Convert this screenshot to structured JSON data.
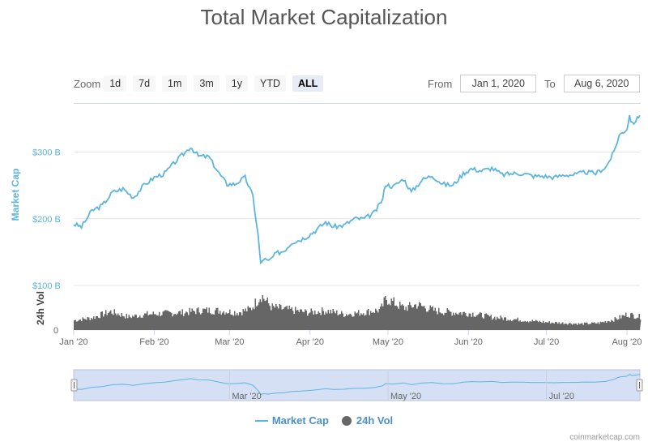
{
  "title": "Total Market Capitalization",
  "toolbar": {
    "zoom_label": "Zoom",
    "buttons": [
      "1d",
      "7d",
      "1m",
      "3m",
      "1y",
      "YTD",
      "ALL"
    ],
    "active": "ALL"
  },
  "range": {
    "from_label": "From",
    "from_value": "Jan 1, 2020",
    "to_label": "To",
    "to_value": "Aug 6, 2020"
  },
  "legend": {
    "cap": "Market Cap",
    "vol": "24h Vol"
  },
  "credit": "coinmarketcap.com",
  "colors": {
    "market_cap": "#5bb5e0",
    "volume": "#666666",
    "navigator_fill": "#d6e0f5"
  },
  "chart_data": {
    "type": "line",
    "title": "Total Market Capitalization",
    "x_tick_labels": [
      "Jan '20",
      "Feb '20",
      "Mar '20",
      "Apr '20",
      "May '20",
      "Jun '20",
      "Jul '20",
      "Aug '20"
    ],
    "navigator_tick_labels": [
      "Mar '20",
      "May '20",
      "Jul '20"
    ],
    "x_range": [
      "2020-01-01",
      "2020-08-06"
    ],
    "series": [
      {
        "name": "Market Cap",
        "axis_label": "Market Cap",
        "y_ticks": [
          "$100 B",
          "$200 B",
          "$300 B"
        ],
        "ylim": [
          100,
          370
        ],
        "unit": "billion USD",
        "points": [
          [
            "2020-01-01",
            192
          ],
          [
            "2020-01-04",
            188
          ],
          [
            "2020-01-08",
            212
          ],
          [
            "2020-01-12",
            220
          ],
          [
            "2020-01-16",
            240
          ],
          [
            "2020-01-20",
            245
          ],
          [
            "2020-01-24",
            232
          ],
          [
            "2020-01-28",
            250
          ],
          [
            "2020-02-01",
            262
          ],
          [
            "2020-02-05",
            268
          ],
          [
            "2020-02-09",
            285
          ],
          [
            "2020-02-13",
            300
          ],
          [
            "2020-02-15",
            308
          ],
          [
            "2020-02-18",
            294
          ],
          [
            "2020-02-22",
            293
          ],
          [
            "2020-02-26",
            268
          ],
          [
            "2020-02-29",
            252
          ],
          [
            "2020-03-03",
            252
          ],
          [
            "2020-03-07",
            262
          ],
          [
            "2020-03-10",
            234
          ],
          [
            "2020-03-12",
            175
          ],
          [
            "2020-03-13",
            132
          ],
          [
            "2020-03-14",
            140
          ],
          [
            "2020-03-16",
            136
          ],
          [
            "2020-03-19",
            148
          ],
          [
            "2020-03-22",
            152
          ],
          [
            "2020-03-25",
            165
          ],
          [
            "2020-03-28",
            168
          ],
          [
            "2020-03-31",
            174
          ],
          [
            "2020-04-03",
            182
          ],
          [
            "2020-04-07",
            195
          ],
          [
            "2020-04-10",
            188
          ],
          [
            "2020-04-14",
            190
          ],
          [
            "2020-04-18",
            200
          ],
          [
            "2020-04-22",
            200
          ],
          [
            "2020-04-26",
            210
          ],
          [
            "2020-04-29",
            230
          ],
          [
            "2020-04-30",
            252
          ],
          [
            "2020-05-03",
            248
          ],
          [
            "2020-05-07",
            260
          ],
          [
            "2020-05-10",
            240
          ],
          [
            "2020-05-14",
            258
          ],
          [
            "2020-05-18",
            265
          ],
          [
            "2020-05-22",
            252
          ],
          [
            "2020-05-26",
            250
          ],
          [
            "2020-05-30",
            268
          ],
          [
            "2020-06-02",
            275
          ],
          [
            "2020-06-06",
            272
          ],
          [
            "2020-06-10",
            276
          ],
          [
            "2020-06-14",
            266
          ],
          [
            "2020-06-18",
            268
          ],
          [
            "2020-06-22",
            268
          ],
          [
            "2020-06-26",
            264
          ],
          [
            "2020-06-30",
            264
          ],
          [
            "2020-07-04",
            262
          ],
          [
            "2020-07-08",
            266
          ],
          [
            "2020-07-12",
            266
          ],
          [
            "2020-07-16",
            270
          ],
          [
            "2020-07-20",
            268
          ],
          [
            "2020-07-24",
            278
          ],
          [
            "2020-07-27",
            300
          ],
          [
            "2020-07-29",
            325
          ],
          [
            "2020-08-01",
            335
          ],
          [
            "2020-08-02",
            355
          ],
          [
            "2020-08-03",
            342
          ],
          [
            "2020-08-05",
            350
          ],
          [
            "2020-08-06",
            355
          ]
        ]
      },
      {
        "name": "24h Vol",
        "axis_label": "24h Vol",
        "y_ticks": [
          "0"
        ],
        "ylim": [
          0,
          100
        ],
        "unit": "billion USD",
        "points": [
          [
            "2020-01-01",
            22
          ],
          [
            "2020-01-08",
            28
          ],
          [
            "2020-01-15",
            42
          ],
          [
            "2020-01-22",
            30
          ],
          [
            "2020-01-29",
            36
          ],
          [
            "2020-02-05",
            38
          ],
          [
            "2020-02-12",
            40
          ],
          [
            "2020-02-19",
            45
          ],
          [
            "2020-02-26",
            44
          ],
          [
            "2020-03-04",
            40
          ],
          [
            "2020-03-09",
            48
          ],
          [
            "2020-03-13",
            80
          ],
          [
            "2020-03-17",
            52
          ],
          [
            "2020-03-24",
            46
          ],
          [
            "2020-03-31",
            40
          ],
          [
            "2020-04-07",
            44
          ],
          [
            "2020-04-14",
            36
          ],
          [
            "2020-04-21",
            40
          ],
          [
            "2020-04-28",
            46
          ],
          [
            "2020-04-30",
            72
          ],
          [
            "2020-05-07",
            50
          ],
          [
            "2020-05-12",
            58
          ],
          [
            "2020-05-19",
            44
          ],
          [
            "2020-05-26",
            40
          ],
          [
            "2020-06-02",
            38
          ],
          [
            "2020-06-09",
            30
          ],
          [
            "2020-06-16",
            26
          ],
          [
            "2020-06-23",
            22
          ],
          [
            "2020-06-30",
            18
          ],
          [
            "2020-07-07",
            16
          ],
          [
            "2020-07-14",
            14
          ],
          [
            "2020-07-21",
            16
          ],
          [
            "2020-07-28",
            26
          ],
          [
            "2020-08-01",
            36
          ],
          [
            "2020-08-06",
            30
          ]
        ]
      }
    ],
    "grid": true,
    "legend_position": "bottom-center",
    "navigator": true
  }
}
